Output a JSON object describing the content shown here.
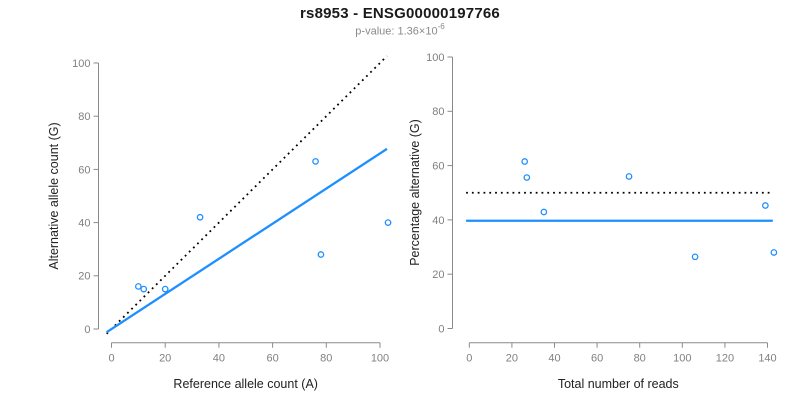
{
  "header": {
    "title": "rs8953 - ENSG00000197766",
    "pvalue_prefix": "p-value: 1.36×10",
    "pvalue_exponent": "-6"
  },
  "colors": {
    "accent_blue": "#1e8fff",
    "line_black": "#000000",
    "axis_gray": "#8a8a8a",
    "tick_label_gray": "#808080"
  },
  "chart_data": [
    {
      "type": "scatter",
      "xlabel": "Reference allele count (A)",
      "ylabel": "Alternative allele count (G)",
      "xlim": [
        0,
        100
      ],
      "ylim": [
        0,
        100
      ],
      "xticks": [
        0,
        20,
        40,
        60,
        80,
        100
      ],
      "yticks": [
        0,
        20,
        40,
        60,
        80,
        100
      ],
      "grid": false,
      "legend": false,
      "points": [
        {
          "x": 10,
          "y": 16
        },
        {
          "x": 12,
          "y": 15
        },
        {
          "x": 20,
          "y": 15
        },
        {
          "x": 33,
          "y": 42
        },
        {
          "x": 76,
          "y": 63
        },
        {
          "x": 78,
          "y": 28
        },
        {
          "x": 103,
          "y": 40
        }
      ],
      "lines": [
        {
          "name": "identity-line",
          "slope": 1,
          "intercept": 0,
          "style": "dotted",
          "color": "#000000"
        },
        {
          "name": "regression-line",
          "slope": 0.66,
          "intercept": 0,
          "style": "solid",
          "color": "#1e8fff"
        }
      ],
      "point_style": {
        "color": "#1e8fff",
        "radius": 2.7
      }
    },
    {
      "type": "scatter",
      "xlabel": "Total number of reads",
      "ylabel": "Percentage alternative (G)",
      "xlim": [
        0,
        140
      ],
      "ylim": [
        0,
        100
      ],
      "xticks": [
        0,
        20,
        40,
        60,
        80,
        100,
        120,
        140
      ],
      "yticks": [
        0,
        20,
        40,
        60,
        80,
        100
      ],
      "grid": false,
      "legend": false,
      "points": [
        {
          "x": 26,
          "y": 61.5
        },
        {
          "x": 27,
          "y": 55.6
        },
        {
          "x": 35,
          "y": 42.9
        },
        {
          "x": 75,
          "y": 56.0
        },
        {
          "x": 139,
          "y": 45.3
        },
        {
          "x": 106,
          "y": 26.4
        },
        {
          "x": 143,
          "y": 28.0
        }
      ],
      "lines": [
        {
          "name": "expected-line",
          "slope": 0,
          "intercept": 50,
          "style": "dotted",
          "color": "#000000"
        },
        {
          "name": "mean-line",
          "slope": 0,
          "intercept": 39.7,
          "style": "solid",
          "color": "#1e8fff"
        }
      ],
      "point_style": {
        "color": "#1e8fff",
        "radius": 2.7
      }
    }
  ]
}
